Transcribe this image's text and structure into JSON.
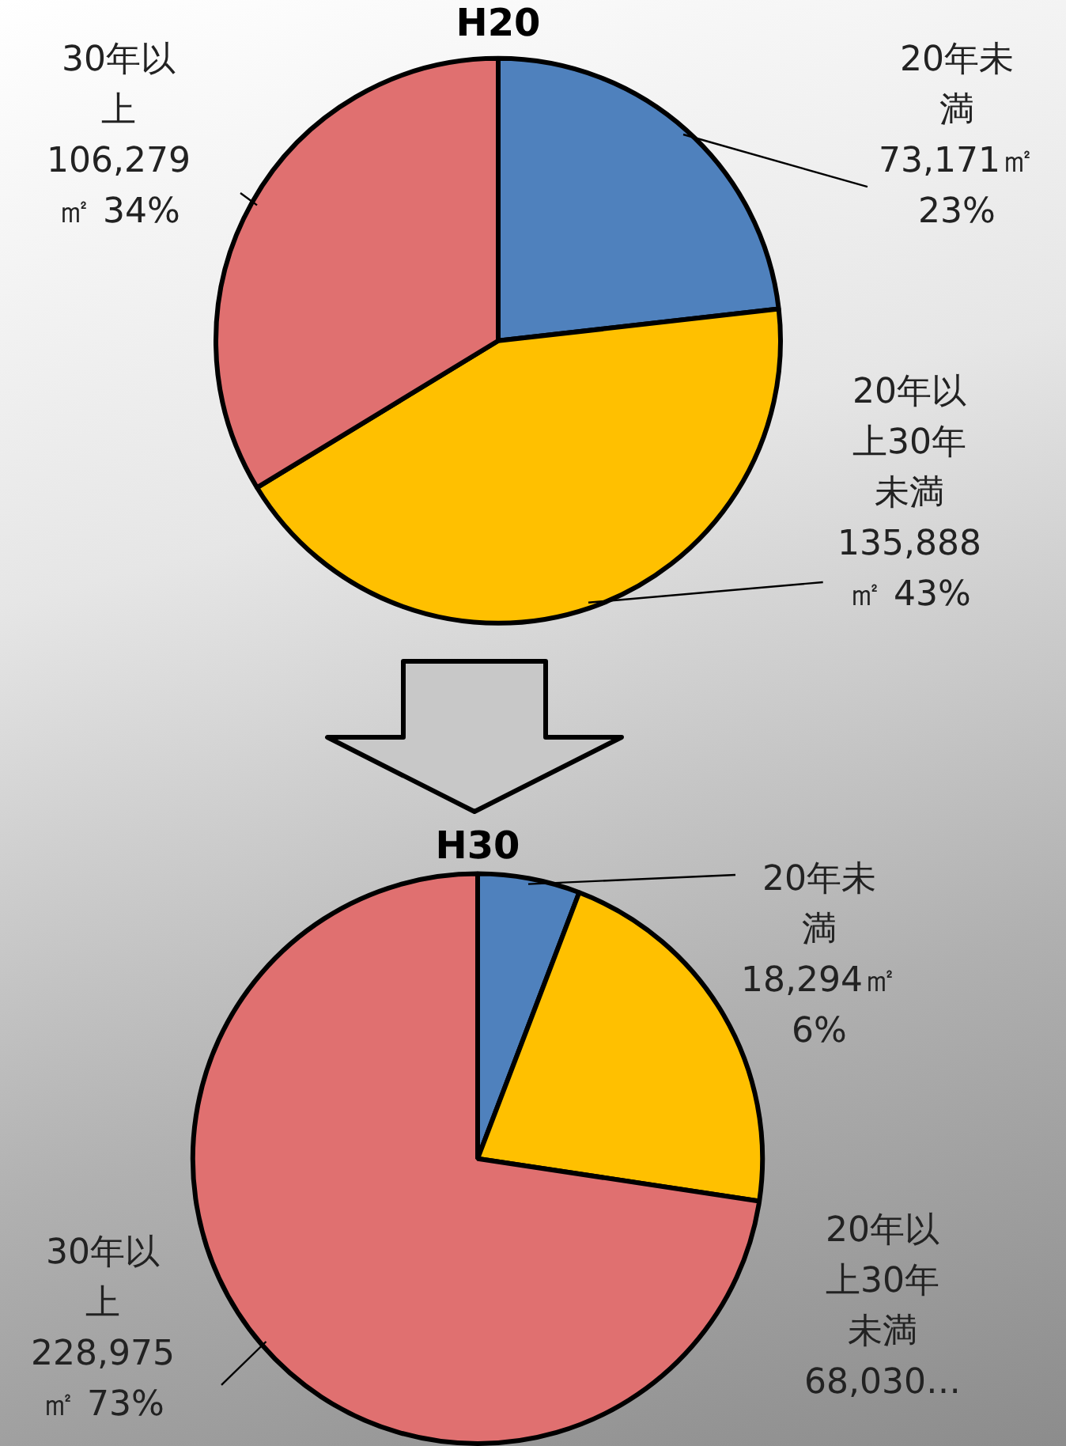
{
  "chart_data": [
    {
      "type": "pie",
      "title": "H20",
      "categories": [
        "20年未満",
        "20年以上30年未満",
        "30年以上"
      ],
      "values": [
        73171,
        135888,
        106279
      ],
      "colors": [
        "#4f81bd",
        "#ffc000",
        "#e07070"
      ],
      "value_labels": [
        "73,171㎡ 23%",
        "135,888㎡ 43%",
        "106,279㎡ 34%"
      ]
    },
    {
      "type": "pie",
      "title": "H30",
      "categories": [
        "20年未満",
        "20年以上30年未満",
        "30年以上"
      ],
      "values": [
        18294,
        68030,
        228975
      ],
      "colors": [
        "#4f81bd",
        "#ffc000",
        "#e07070"
      ],
      "value_labels": [
        "18,294㎡ 6%",
        "68,030…",
        "228,975㎡ 73%"
      ]
    }
  ]
}
